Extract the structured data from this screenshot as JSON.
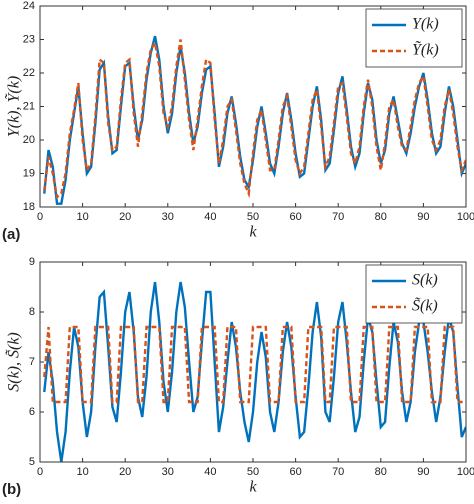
{
  "chart_data": [
    {
      "type": "line",
      "panel_label": "(a)",
      "xlabel": "k",
      "ylabel": "Y(k), Ỹ(k)",
      "x": [
        1,
        2,
        3,
        4,
        5,
        6,
        7,
        8,
        9,
        10,
        11,
        12,
        13,
        14,
        15,
        16,
        17,
        18,
        19,
        20,
        21,
        22,
        23,
        24,
        25,
        26,
        27,
        28,
        29,
        30,
        31,
        32,
        33,
        34,
        35,
        36,
        37,
        38,
        39,
        40,
        41,
        42,
        43,
        44,
        45,
        46,
        47,
        48,
        49,
        50,
        51,
        52,
        53,
        54,
        55,
        56,
        57,
        58,
        59,
        60,
        61,
        62,
        63,
        64,
        65,
        66,
        67,
        68,
        69,
        70,
        71,
        72,
        73,
        74,
        75,
        76,
        77,
        78,
        79,
        80,
        81,
        82,
        83,
        84,
        85,
        86,
        87,
        88,
        89,
        90,
        91,
        92,
        93,
        94,
        95,
        96,
        97,
        98,
        99,
        100
      ],
      "xlim": [
        0,
        100
      ],
      "xticks": [
        0,
        10,
        20,
        30,
        40,
        50,
        60,
        70,
        80,
        90,
        100
      ],
      "ylim": [
        18,
        24
      ],
      "yticks": [
        18,
        19,
        20,
        21,
        22,
        23,
        24
      ],
      "legend": "upper right",
      "series": [
        {
          "name": "Y(k)",
          "color": "#0072bd",
          "linestyle": "solid",
          "values": [
            18.4,
            19.7,
            19.2,
            18.1,
            18.1,
            18.8,
            20.0,
            20.8,
            21.6,
            20.2,
            19.0,
            19.2,
            20.5,
            22.1,
            22.3,
            20.7,
            19.6,
            19.7,
            21.0,
            22.2,
            22.3,
            21.0,
            20.0,
            20.6,
            21.8,
            22.6,
            23.1,
            22.4,
            21.0,
            20.2,
            20.8,
            22.0,
            22.8,
            22.0,
            20.8,
            19.9,
            20.4,
            21.4,
            22.1,
            22.2,
            20.8,
            19.2,
            19.8,
            20.8,
            21.3,
            20.5,
            19.5,
            18.8,
            18.6,
            19.4,
            20.4,
            21.0,
            20.2,
            19.3,
            19.0,
            19.8,
            20.8,
            21.4,
            20.6,
            19.6,
            18.9,
            19.0,
            20.0,
            21.0,
            21.6,
            20.6,
            19.1,
            19.3,
            20.3,
            21.4,
            21.9,
            20.9,
            19.8,
            19.2,
            19.6,
            20.8,
            21.7,
            21.2,
            20.0,
            19.3,
            19.7,
            20.8,
            21.3,
            20.6,
            19.9,
            19.6,
            20.2,
            21.0,
            21.6,
            22.0,
            21.2,
            20.2,
            19.6,
            19.8,
            20.8,
            21.6,
            21.0,
            20.0,
            19.0,
            19.3
          ]
        },
        {
          "name": "Ỹ(k)",
          "color": "#d95319",
          "linestyle": "dashed",
          "values": [
            18.5,
            19.5,
            19.0,
            18.3,
            18.4,
            19.0,
            20.2,
            20.9,
            21.7,
            20.0,
            19.1,
            19.3,
            20.7,
            22.4,
            22.3,
            20.5,
            19.7,
            19.8,
            21.2,
            22.3,
            22.4,
            20.8,
            19.8,
            20.8,
            22.0,
            22.7,
            22.9,
            22.2,
            20.8,
            20.4,
            21.0,
            22.2,
            23.0,
            21.8,
            20.6,
            19.7,
            20.6,
            21.6,
            22.4,
            22.3,
            20.6,
            19.3,
            20.0,
            21.0,
            21.2,
            20.3,
            19.3,
            18.7,
            18.4,
            19.6,
            20.6,
            20.9,
            20.0,
            19.1,
            19.1,
            20.0,
            21.0,
            21.3,
            20.4,
            19.4,
            19.0,
            19.2,
            20.2,
            21.2,
            21.5,
            20.4,
            19.2,
            19.5,
            20.5,
            21.6,
            21.7,
            20.7,
            19.6,
            19.3,
            19.8,
            21.0,
            21.8,
            21.0,
            19.8,
            19.1,
            19.9,
            21.0,
            21.2,
            20.4,
            19.8,
            19.7,
            20.4,
            21.2,
            21.7,
            21.9,
            21.0,
            20.0,
            19.7,
            20.0,
            21.0,
            21.5,
            20.8,
            19.8,
            19.1,
            19.4
          ]
        }
      ]
    },
    {
      "type": "line",
      "panel_label": "(b)",
      "xlabel": "k",
      "ylabel": "S(k), S̃(k)",
      "x": [
        1,
        2,
        3,
        4,
        5,
        6,
        7,
        8,
        9,
        10,
        11,
        12,
        13,
        14,
        15,
        16,
        17,
        18,
        19,
        20,
        21,
        22,
        23,
        24,
        25,
        26,
        27,
        28,
        29,
        30,
        31,
        32,
        33,
        34,
        35,
        36,
        37,
        38,
        39,
        40,
        41,
        42,
        43,
        44,
        45,
        46,
        47,
        48,
        49,
        50,
        51,
        52,
        53,
        54,
        55,
        56,
        57,
        58,
        59,
        60,
        61,
        62,
        63,
        64,
        65,
        66,
        67,
        68,
        69,
        70,
        71,
        72,
        73,
        74,
        75,
        76,
        77,
        78,
        79,
        80,
        81,
        82,
        83,
        84,
        85,
        86,
        87,
        88,
        89,
        90,
        91,
        92,
        93,
        94,
        95,
        96,
        97,
        98,
        99,
        100
      ],
      "xlim": [
        0,
        100
      ],
      "xticks": [
        0,
        10,
        20,
        30,
        40,
        50,
        60,
        70,
        80,
        90,
        100
      ],
      "ylim": [
        5,
        9
      ],
      "yticks": [
        5,
        6,
        7,
        8,
        9
      ],
      "legend": "upper right",
      "series": [
        {
          "name": "S(k)",
          "color": "#0072bd",
          "linestyle": "solid",
          "values": [
            6.4,
            7.2,
            6.6,
            5.6,
            5.0,
            5.6,
            6.8,
            7.7,
            7.3,
            6.2,
            5.5,
            6.0,
            7.3,
            8.3,
            8.4,
            7.3,
            6.1,
            5.8,
            6.8,
            8.0,
            8.4,
            7.6,
            6.3,
            5.9,
            6.7,
            8.0,
            8.6,
            7.8,
            6.6,
            6.0,
            6.8,
            8.0,
            8.6,
            8.1,
            7.0,
            6.0,
            6.3,
            7.4,
            8.4,
            8.4,
            7.0,
            5.6,
            6.1,
            7.0,
            7.8,
            7.3,
            6.4,
            5.8,
            5.4,
            6.0,
            7.0,
            7.6,
            7.1,
            6.0,
            5.6,
            6.2,
            7.2,
            7.8,
            7.3,
            6.3,
            5.5,
            5.6,
            6.5,
            7.6,
            8.2,
            7.5,
            6.0,
            5.8,
            6.7,
            7.8,
            8.2,
            7.4,
            6.4,
            5.6,
            5.9,
            7.0,
            7.9,
            7.6,
            6.6,
            5.7,
            5.8,
            6.9,
            7.8,
            7.4,
            6.4,
            5.8,
            6.2,
            7.2,
            7.8,
            7.8,
            7.2,
            6.4,
            5.8,
            6.3,
            7.2,
            7.9,
            7.6,
            6.5,
            5.5,
            5.7
          ]
        },
        {
          "name": "S̃(k)",
          "color": "#d95319",
          "linestyle": "dashed",
          "values": [
            6.7,
            7.7,
            6.2,
            6.2,
            6.2,
            6.2,
            7.7,
            7.7,
            7.7,
            6.2,
            6.2,
            6.2,
            7.7,
            7.7,
            7.7,
            7.7,
            6.2,
            6.2,
            7.7,
            7.7,
            7.7,
            7.7,
            6.2,
            6.2,
            7.7,
            7.7,
            7.7,
            7.7,
            6.2,
            6.2,
            7.7,
            7.7,
            7.7,
            7.7,
            6.2,
            6.2,
            6.2,
            7.7,
            7.7,
            7.7,
            7.7,
            6.2,
            6.2,
            7.7,
            7.7,
            7.7,
            6.2,
            6.2,
            6.2,
            7.7,
            7.7,
            7.7,
            7.7,
            6.2,
            6.2,
            6.2,
            7.7,
            7.7,
            7.7,
            6.2,
            6.2,
            6.2,
            7.7,
            7.7,
            7.7,
            7.7,
            6.2,
            6.2,
            7.7,
            7.7,
            7.7,
            7.7,
            6.2,
            6.2,
            6.2,
            7.7,
            7.7,
            7.7,
            6.2,
            6.2,
            6.2,
            7.7,
            7.7,
            7.7,
            6.2,
            6.2,
            6.2,
            7.7,
            7.7,
            7.7,
            7.7,
            6.2,
            6.2,
            6.2,
            7.7,
            7.7,
            7.7,
            6.2,
            6.2,
            6.2
          ]
        }
      ]
    }
  ]
}
